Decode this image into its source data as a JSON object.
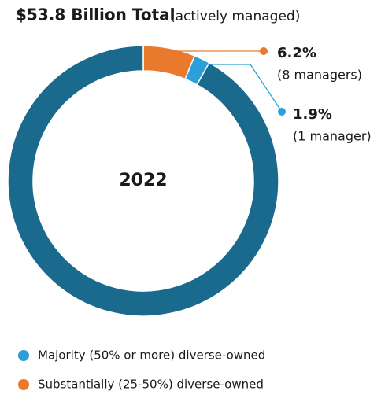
{
  "chart_data": {
    "type": "donut",
    "title": "$53.8 Billion Total",
    "subtitle": "(actively managed)",
    "center_label": "2022",
    "categories": [
      "Substantially (25-50%) diverse-owned",
      "Majority (50% or more) diverse-owned",
      null
    ],
    "values": [
      6.2,
      1.9,
      91.9
    ],
    "value_labels": [
      "6.2%",
      "1.9%",
      null
    ],
    "annotations": [
      "(8 managers)",
      "(1 manager)",
      null
    ],
    "colors": [
      "#e9792c",
      "#2a9fda",
      "#1a6a8e"
    ]
  }
}
